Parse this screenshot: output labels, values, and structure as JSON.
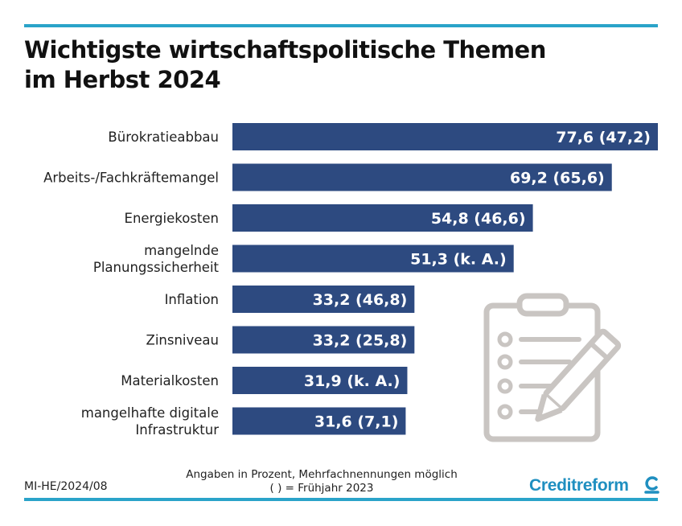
{
  "chart_data": {
    "type": "bar",
    "orientation": "horizontal",
    "title_lines": [
      "Wichtigste wirtschaftspolitische Themen",
      "im Herbst 2024"
    ],
    "categories": [
      [
        "Bürokratieabbau"
      ],
      [
        "Arbeits-/Fachkräftemangel"
      ],
      [
        "Energiekosten"
      ],
      [
        "mangelnde",
        "Planungssicherheit"
      ],
      [
        "Inflation"
      ],
      [
        "Zinsniveau"
      ],
      [
        "Materialkosten"
      ],
      [
        "mangelhafte digitale",
        "Infrastruktur"
      ]
    ],
    "values": [
      77.6,
      69.2,
      54.8,
      51.3,
      33.2,
      33.2,
      31.9,
      31.6
    ],
    "value_labels": [
      "77,6 (47,2)",
      "69,2 (65,6)",
      "54,8 (46,6)",
      "51,3 (k. A.)",
      "33,2 (46,8)",
      "33,2 (25,8)",
      "31,9 (k. A.)",
      "31,6 (7,1)"
    ],
    "xlim": [
      0,
      77.6
    ],
    "bar_color": "#2d4a80",
    "grid": false,
    "legend": "none"
  },
  "footer": {
    "code": "MI-HE/2024/08",
    "note_lines": [
      "Angaben in Prozent, Mehrfachnennungen möglich",
      "( ) = Frühjahr 2023"
    ],
    "brand": "Creditreform"
  },
  "colors": {
    "accent": "#2aa3c9",
    "brand": "#1f8fc0",
    "icon": "#c9c5c2"
  },
  "icons": [
    "clipboard-checklist-icon",
    "pencil-icon",
    "creditreform-logo-icon"
  ]
}
